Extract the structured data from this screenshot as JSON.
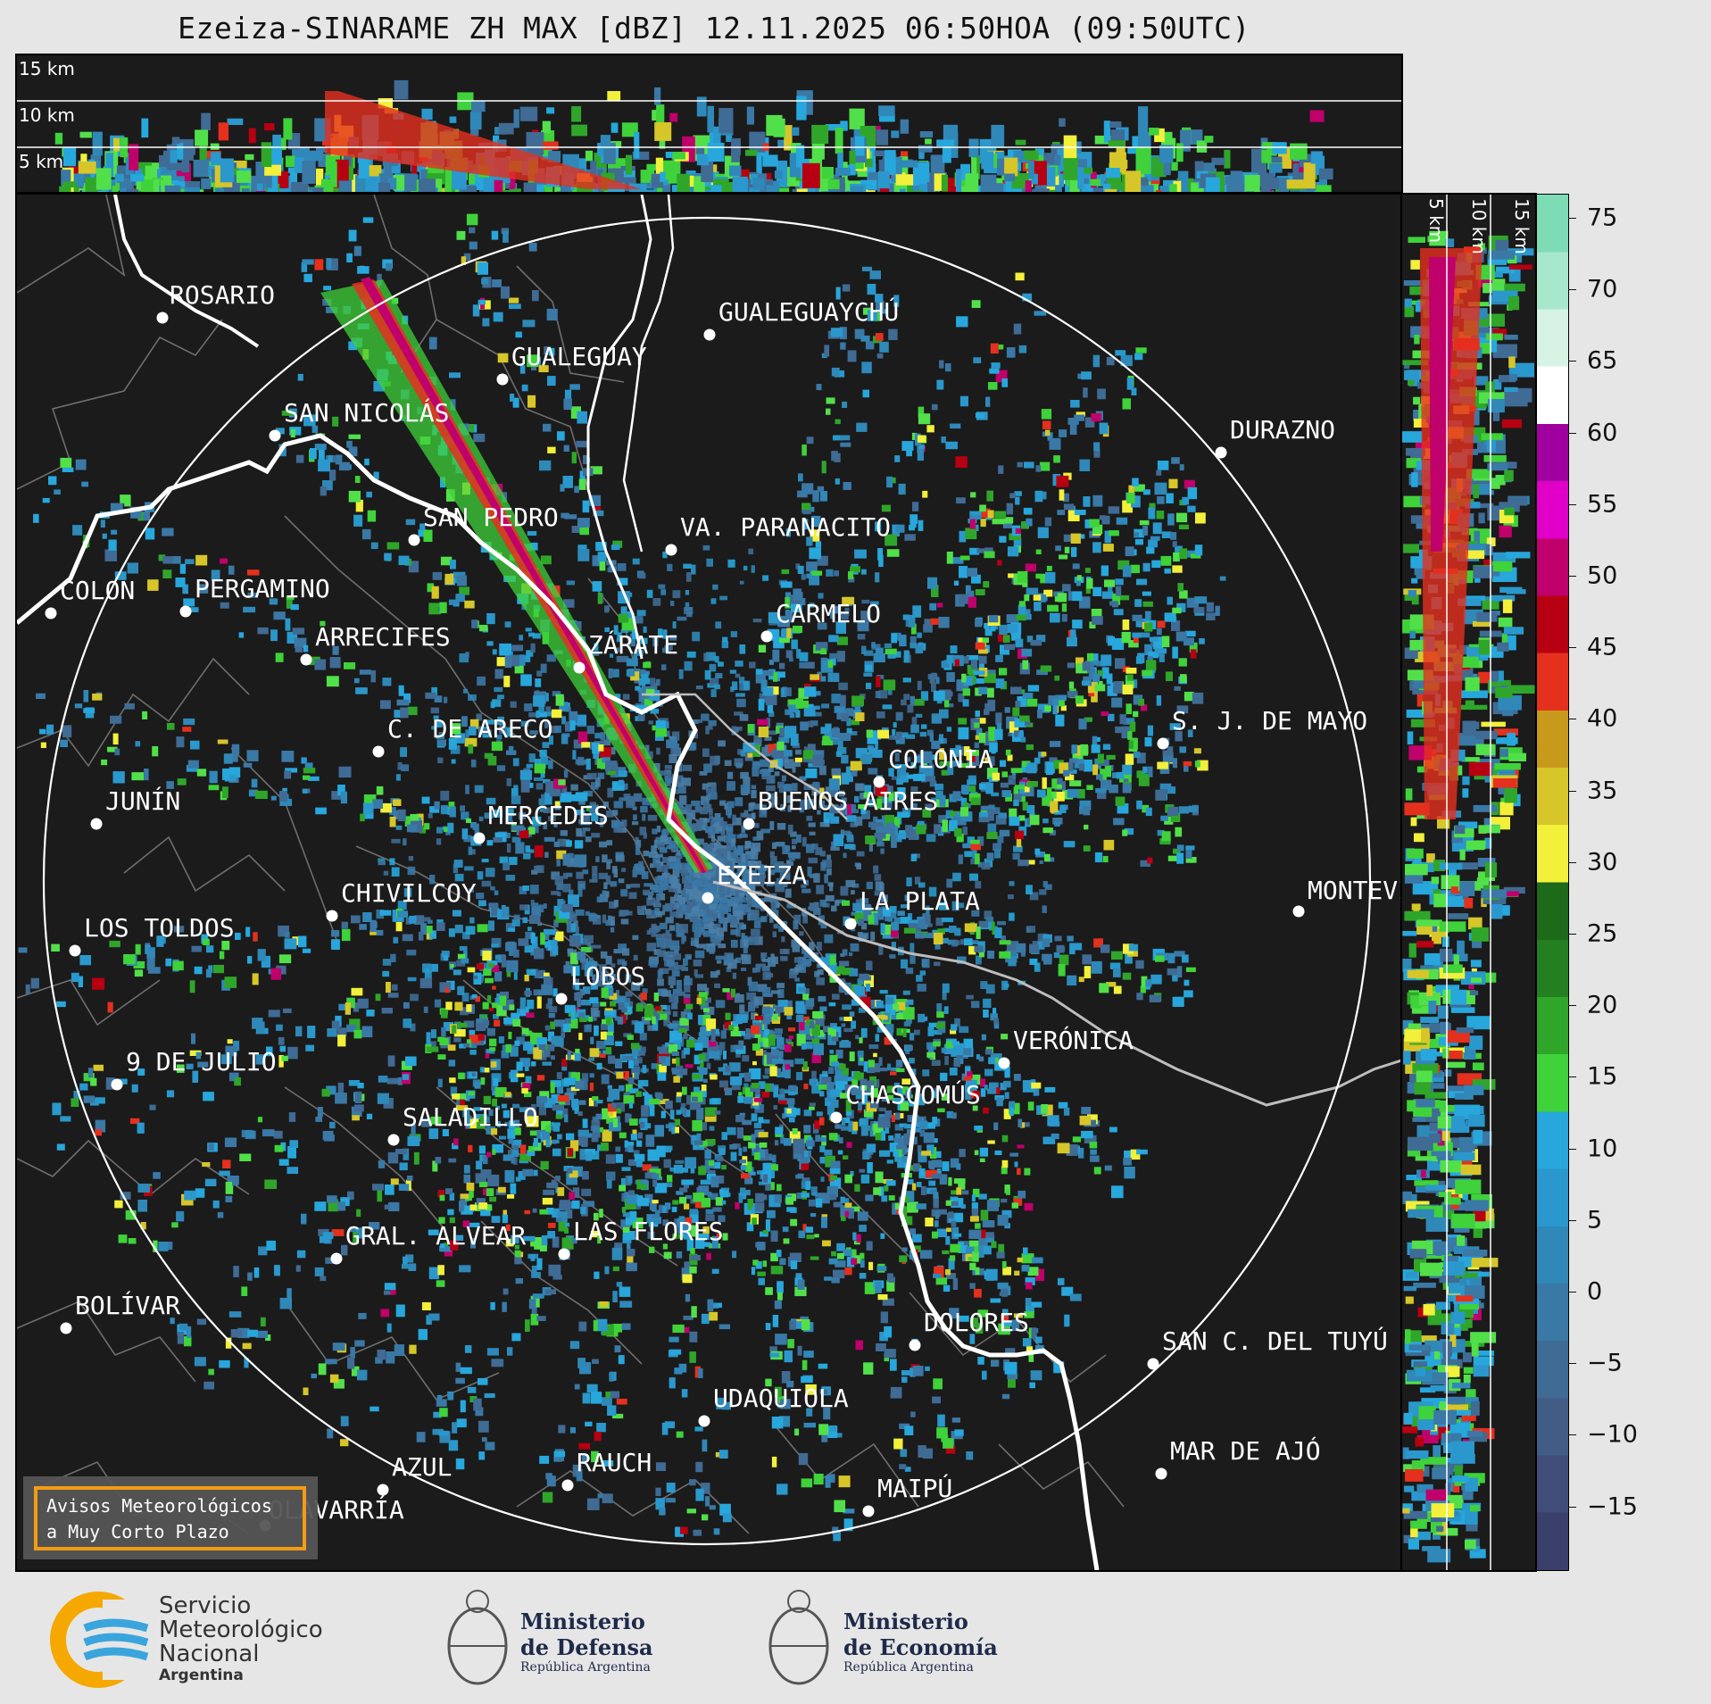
{
  "title": "Ezeiza-SINARAME ZH MAX [dBZ] 12.11.2025 06:50HOA (09:50UTC)",
  "top_panel": {
    "height_labels": [
      "15 km",
      "10 km",
      "5 km"
    ]
  },
  "side_panel": {
    "height_labels": [
      "5 km",
      "10 km",
      "15 km"
    ]
  },
  "colorbar": {
    "unit": "dBZ",
    "ticks": [
      "75",
      "70",
      "65",
      "60",
      "55",
      "50",
      "45",
      "40",
      "35",
      "30",
      "25",
      "20",
      "15",
      "10",
      "5",
      "0",
      "−5",
      "−10",
      "−15"
    ],
    "range": [
      -20,
      77
    ],
    "colors": [
      "#3a3f6b",
      "#3f4d78",
      "#415c85",
      "#3f6b94",
      "#3a78a6",
      "#2f88b8",
      "#2a98cc",
      "#27a7dc",
      "#3fd23a",
      "#2fa62a",
      "#237f20",
      "#1d6a1a",
      "#f2f03a",
      "#d6c629",
      "#c79a1c",
      "#e5301e",
      "#b70012",
      "#c0006b",
      "#e000c8",
      "#a000a0",
      "#ffffff",
      "#d6f3e3",
      "#a7e8cc",
      "#7ddbb5"
    ]
  },
  "cities": [
    {
      "name": "ROSARIO"
    },
    {
      "name": "GUALEGUAYCHÚ"
    },
    {
      "name": "GUALEGUAY"
    },
    {
      "name": "SAN NICOLÁS"
    },
    {
      "name": "DURAZNO"
    },
    {
      "name": "SAN PEDRO"
    },
    {
      "name": "VA. PARANACITO"
    },
    {
      "name": "COLON"
    },
    {
      "name": "PERGAMINO"
    },
    {
      "name": "CARMELO"
    },
    {
      "name": "ARRECIFES"
    },
    {
      "name": "ZÁRATE"
    },
    {
      "name": "S. J. DE MAYO"
    },
    {
      "name": "C. DE ARECO"
    },
    {
      "name": "COLONIA"
    },
    {
      "name": "JUNÍN"
    },
    {
      "name": "BUENOS AIRES"
    },
    {
      "name": "MERCEDES"
    },
    {
      "name": "MONTEVIDEO"
    },
    {
      "name": "EZEIZA"
    },
    {
      "name": "CHIVILCOY"
    },
    {
      "name": "LA PLATA"
    },
    {
      "name": "LOS TOLDOS"
    },
    {
      "name": "LOBOS"
    },
    {
      "name": "VERÓNICA"
    },
    {
      "name": "9 DE JULIO"
    },
    {
      "name": "CHASCOMÚS"
    },
    {
      "name": "SALADILLO"
    },
    {
      "name": "GRAL. ALVEAR"
    },
    {
      "name": "LAS FLORES"
    },
    {
      "name": "BOLÍVAR"
    },
    {
      "name": "DOLORES"
    },
    {
      "name": "SAN C. DEL TUYÚ"
    },
    {
      "name": "UDAQUIOLA"
    },
    {
      "name": "AZUL"
    },
    {
      "name": "RAUCH"
    },
    {
      "name": "MAR DE AJÓ"
    },
    {
      "name": "OLAVARRÍA"
    },
    {
      "name": "MAIPÚ"
    }
  ],
  "warning_box": {
    "line1": "Avisos Meteorológicos",
    "line2": "a Muy Corto Plazo"
  },
  "footer": {
    "smn": {
      "line1": "Servicio",
      "line2": "Meteorológico",
      "line3": "Nacional",
      "line4": "Argentina"
    },
    "defensa": {
      "line1": "Ministerio",
      "line2": "de Defensa",
      "line3": "República Argentina"
    },
    "economia": {
      "line1": "Ministerio",
      "line2": "de Economía",
      "line3": "República Argentina"
    }
  }
}
